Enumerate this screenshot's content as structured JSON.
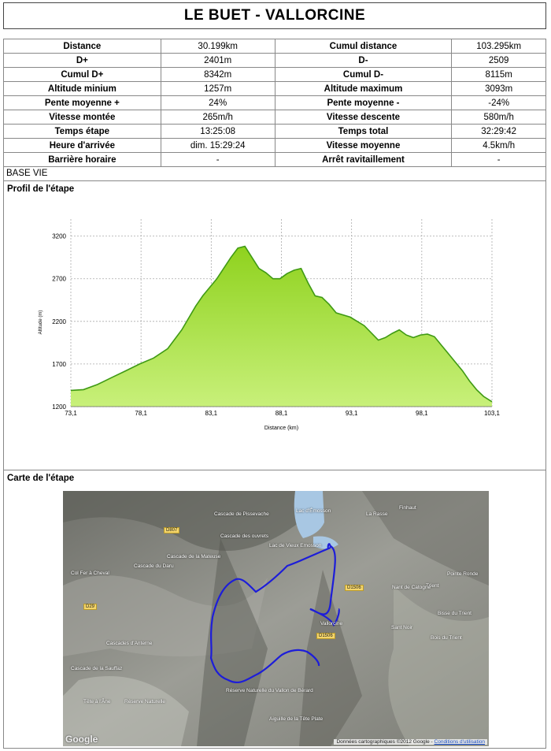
{
  "title": "LE BUET - VALLORCINE",
  "stats": [
    {
      "l1": "Distance",
      "v1": "30.199km",
      "l2": "Cumul distance",
      "v2": "103.295km"
    },
    {
      "l1": "D+",
      "v1": "2401m",
      "l2": "D-",
      "v2": "2509"
    },
    {
      "l1": "Cumul D+",
      "v1": "8342m",
      "l2": "Cumul D-",
      "v2": "8115m"
    },
    {
      "l1": "Altitude minium",
      "v1": "1257m",
      "l2": "Altitude maximum",
      "v2": "3093m"
    },
    {
      "l1": "Pente moyenne +",
      "v1": "24%",
      "l2": "Pente moyenne -",
      "v2": "-24%"
    },
    {
      "l1": "Vitesse montée",
      "v1": "265m/h",
      "l2": "Vitesse descente",
      "v2": "580m/h"
    },
    {
      "l1": "Temps étape",
      "v1": "13:25:08",
      "l2": "Temps total",
      "v2": "32:29:42"
    },
    {
      "l1": "Heure d'arrivée",
      "v1": "dim. 15:29:24",
      "l2": "Vitesse moyenne",
      "v2": "4.5km/h"
    },
    {
      "l1": "Barrière horaire",
      "v1": "-",
      "l2": "Arrêt ravitaillement",
      "v2": "-"
    }
  ],
  "base_vie": "BASE VIE",
  "profile_title": "Profil de l'étape",
  "map_title": "Carte de l'étape",
  "chart_data": {
    "type": "area",
    "xlabel": "Distance (km)",
    "ylabel": "Altitude (m)",
    "xlim": [
      73.1,
      103.1
    ],
    "ylim": [
      1200,
      3400
    ],
    "xticks": [
      "73,1",
      "78,1",
      "83,1",
      "88,1",
      "93,1",
      "98,1",
      "103,1"
    ],
    "yticks": [
      "1200",
      "1700",
      "2200",
      "2700",
      "3200"
    ],
    "fill_color": "#a6e23a",
    "line_color": "#3f9a14",
    "x": [
      73.1,
      74.0,
      75.0,
      76.0,
      77.0,
      78.0,
      79.0,
      80.0,
      81.0,
      82.0,
      82.5,
      83.5,
      84.5,
      85.0,
      85.5,
      86.0,
      86.5,
      87.0,
      87.5,
      88.0,
      88.5,
      89.0,
      89.5,
      90.0,
      90.5,
      91.0,
      91.5,
      92.0,
      93.0,
      94.0,
      95.0,
      95.5,
      96.0,
      96.5,
      97.0,
      97.5,
      98.0,
      98.5,
      99.0,
      99.5,
      100.0,
      100.5,
      101.0,
      101.5,
      102.0,
      102.5,
      103.1
    ],
    "y": [
      1390,
      1400,
      1460,
      1540,
      1620,
      1700,
      1770,
      1880,
      2100,
      2380,
      2500,
      2700,
      2950,
      3060,
      3080,
      2950,
      2820,
      2770,
      2700,
      2700,
      2760,
      2800,
      2820,
      2650,
      2500,
      2480,
      2400,
      2300,
      2250,
      2150,
      1980,
      2010,
      2060,
      2100,
      2040,
      2010,
      2040,
      2050,
      2020,
      1920,
      1820,
      1720,
      1620,
      1500,
      1400,
      1320,
      1257
    ]
  },
  "map": {
    "labels": [
      "Lac d'Émosson",
      "Lac de Vieux Emosson",
      "La Rasse",
      "Finhaut",
      "Cascade de Pissevache",
      "Cascade des ouvrets",
      "Cascade de la Mateuse",
      "Cascade du Daru",
      "Col Fer à Cheval",
      "Cascades d'Anterne",
      "Cascade de la Sauffaz",
      "Tête à l'Âne",
      "Réserve Naturelle",
      "Réserve Naturelle du Vallon de Bérard",
      "Aiguille de la Tête Plate",
      "Trient",
      "Nant de Catogne",
      "Pointe Ronde",
      "Bisse du Trient",
      "Vallorcine",
      "Bois du Trient",
      "Sant Noir"
    ],
    "roads": [
      "D807",
      "D29",
      "D1506",
      "D1506"
    ],
    "google": "Google",
    "attribution": "Données cartographiques ©2012 Google - ",
    "attribution_link": "Conditions d'utilisation"
  }
}
